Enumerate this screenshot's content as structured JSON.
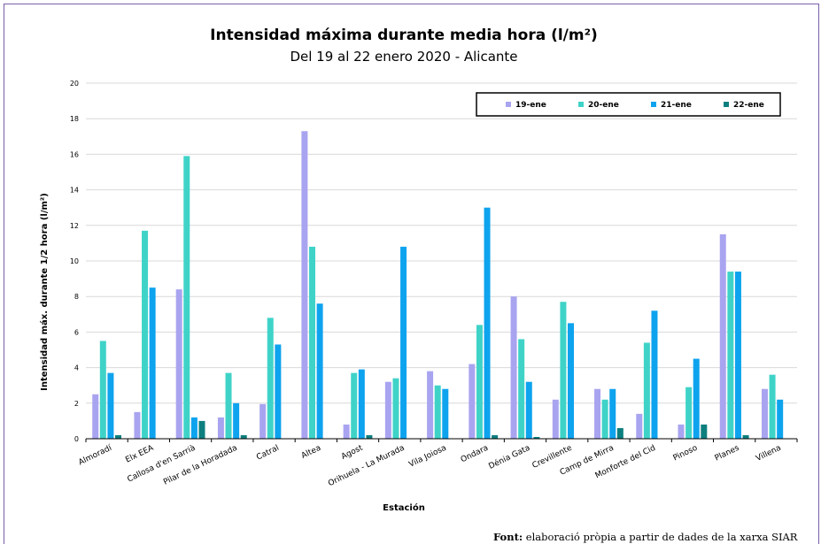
{
  "chart_data": {
    "type": "bar",
    "title": "Intensidad máxima durante media hora (l/m²)",
    "subtitle": "Del 19 al 22 enero 2020 - Alicante",
    "xlabel": "Estación",
    "ylabel": "Intensidad máx. durante 1/2 hora (l/m²)",
    "ylim": [
      0,
      20
    ],
    "yticks": [
      0,
      2,
      4,
      6,
      8,
      10,
      12,
      14,
      16,
      18,
      20
    ],
    "grid": true,
    "legend_position": "top-right",
    "categories": [
      "Almoradí",
      "Elx EEA",
      "Callosa d'en Sarrià",
      "Pilar de la Horadada",
      "Catral",
      "Altea",
      "Agost",
      "Orihuela - La Murada",
      "Vila Joiosa",
      "Ondara",
      "Dénia Gata",
      "Crevillente",
      "Camp de Mirra",
      "Monforte del Cid",
      "Pinoso",
      "Planes",
      "Villena"
    ],
    "series": [
      {
        "name": "19-ene",
        "color": "#a9a4f0",
        "values": [
          2.5,
          1.5,
          8.4,
          1.2,
          1.95,
          17.3,
          0.8,
          3.2,
          3.8,
          4.2,
          8.0,
          2.2,
          2.8,
          1.4,
          0.8,
          11.5,
          2.8
        ]
      },
      {
        "name": "20-ene",
        "color": "#3fd3c8",
        "values": [
          5.5,
          11.7,
          15.9,
          3.7,
          6.8,
          10.8,
          3.7,
          3.4,
          3.0,
          6.4,
          5.6,
          7.7,
          2.2,
          5.4,
          2.9,
          9.4,
          3.6
        ]
      },
      {
        "name": "21-ene",
        "color": "#0ea3ee",
        "values": [
          3.7,
          8.5,
          1.2,
          2.0,
          5.3,
          7.6,
          3.9,
          10.8,
          2.8,
          13.0,
          3.2,
          6.5,
          2.8,
          7.2,
          4.5,
          9.4,
          2.2
        ]
      },
      {
        "name": "22-ene",
        "color": "#0e7f7f",
        "values": [
          0.2,
          0,
          1.0,
          0.2,
          0,
          0,
          0.2,
          0,
          0,
          0.2,
          0.1,
          0,
          0.6,
          0,
          0.8,
          0.2,
          0
        ]
      }
    ]
  },
  "footer": {
    "label": "Font:",
    "text": " elaboració pròpia a partir de dades de la xarxa SIAR"
  }
}
